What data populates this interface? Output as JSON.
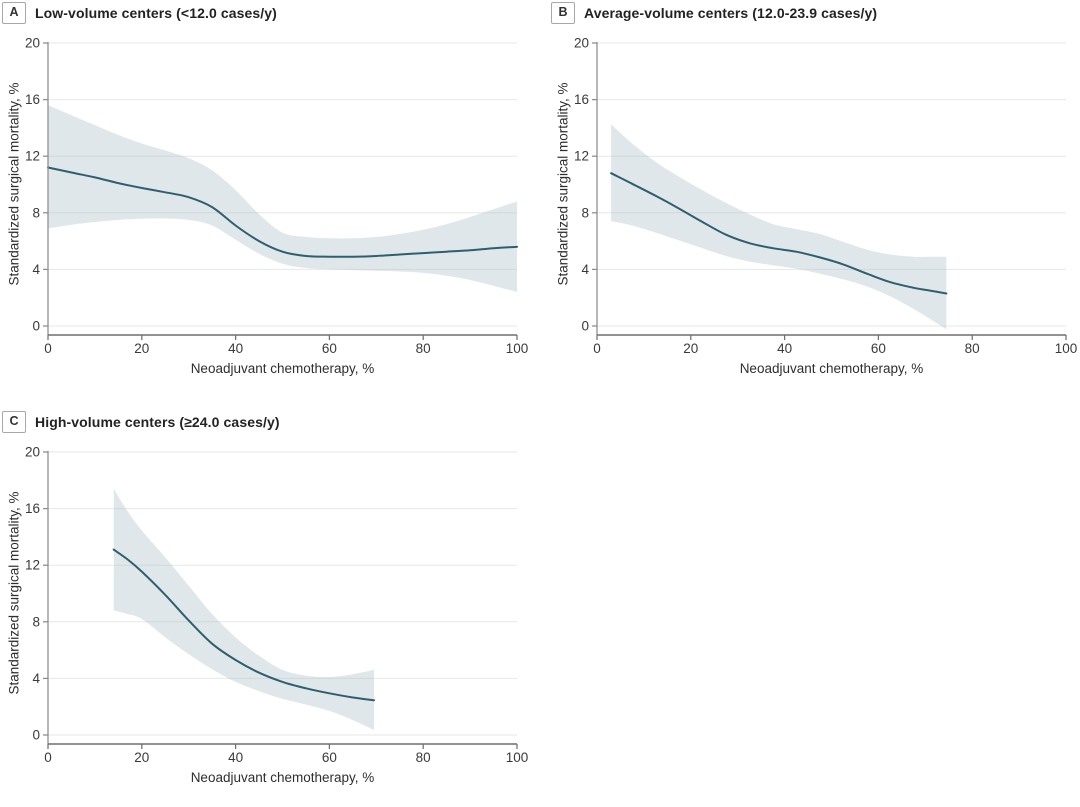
{
  "figure": {
    "background": "#ffffff",
    "colors": {
      "line": "#2E5F6F",
      "band": "rgba(174,192,199,0.38)",
      "grid": "#e7e7e7",
      "axis": "#6f6f6f",
      "axis_light": "#8c8c8c",
      "tick_text": "#3a3a3a"
    }
  },
  "chart_data": [
    {
      "type": "line",
      "panel": "A",
      "title": "Low-volume centers (<12.0 cases/y)",
      "xlabel": "Neoadjuvant chemotherapy, %",
      "ylabel": "Standardized surgical mortality, %",
      "xlim": [
        0,
        100
      ],
      "ylim": [
        0,
        20
      ],
      "xticks": [
        0,
        20,
        40,
        60,
        80,
        100
      ],
      "yticks": [
        0,
        4,
        8,
        12,
        16,
        20
      ],
      "grid": "horizontal",
      "legend": "none",
      "x": [
        0,
        5,
        10,
        15,
        20,
        25,
        30,
        35,
        40,
        45,
        50,
        55,
        60,
        65,
        70,
        75,
        80,
        85,
        90,
        95,
        100
      ],
      "series": [
        {
          "values": [
            11.2,
            10.85,
            10.5,
            10.1,
            9.75,
            9.45,
            9.1,
            8.4,
            7.1,
            6.0,
            5.25,
            4.95,
            4.9,
            4.9,
            4.95,
            5.05,
            5.15,
            5.25,
            5.35,
            5.5,
            5.6
          ]
        }
      ],
      "band": {
        "upper": [
          15.6,
          14.9,
          14.2,
          13.5,
          12.9,
          12.4,
          11.85,
          11.0,
          9.6,
          7.9,
          6.6,
          6.3,
          6.2,
          6.2,
          6.3,
          6.5,
          6.8,
          7.2,
          7.7,
          8.25,
          8.8
        ],
        "lower": [
          6.9,
          7.15,
          7.35,
          7.5,
          7.58,
          7.6,
          7.5,
          7.1,
          6.1,
          5.1,
          4.4,
          4.1,
          4.0,
          3.95,
          3.9,
          3.85,
          3.75,
          3.55,
          3.25,
          2.85,
          2.4
        ]
      }
    },
    {
      "type": "line",
      "panel": "B",
      "title": "Average-volume centers (12.0-23.9 cases/y)",
      "xlabel": "Neoadjuvant chemotherapy, %",
      "ylabel": "Standardized surgical mortality, %",
      "xlim": [
        0,
        100
      ],
      "ylim": [
        0,
        20
      ],
      "xticks": [
        0,
        20,
        40,
        60,
        80,
        100
      ],
      "yticks": [
        0,
        4,
        8,
        12,
        16,
        20
      ],
      "grid": "horizontal",
      "legend": "none",
      "x": [
        3,
        7.5,
        12.5,
        17.5,
        22.5,
        27.5,
        32.5,
        37.5,
        42.5,
        47.5,
        52.5,
        57.5,
        62.5,
        67.5,
        71,
        74.5
      ],
      "series": [
        {
          "values": [
            10.8,
            10.05,
            9.2,
            8.3,
            7.35,
            6.45,
            5.85,
            5.5,
            5.25,
            4.85,
            4.35,
            3.7,
            3.1,
            2.7,
            2.5,
            2.3
          ]
        }
      ],
      "band": {
        "upper": [
          14.25,
          12.9,
          11.6,
          10.55,
          9.6,
          8.7,
          7.9,
          7.2,
          6.85,
          6.5,
          5.95,
          5.4,
          5.05,
          4.9,
          4.9,
          4.9
        ],
        "lower": [
          7.4,
          7.1,
          6.6,
          6.05,
          5.5,
          4.95,
          4.55,
          4.3,
          4.05,
          3.7,
          3.3,
          2.8,
          2.1,
          1.2,
          0.5,
          -0.25
        ]
      }
    },
    {
      "type": "line",
      "panel": "C",
      "title": "High-volume centers (≥24.0 cases/y)",
      "xlabel": "Neoadjuvant chemotherapy, %",
      "ylabel": "Standardized surgical mortality, %",
      "xlim": [
        0,
        100
      ],
      "ylim": [
        0,
        20
      ],
      "xticks": [
        0,
        20,
        40,
        60,
        80,
        100
      ],
      "yticks": [
        0,
        4,
        8,
        12,
        16,
        20
      ],
      "grid": "horizontal",
      "legend": "none",
      "x": [
        14,
        17,
        20,
        25,
        30,
        35,
        40,
        45,
        50,
        55,
        60,
        65,
        69.5
      ],
      "series": [
        {
          "values": [
            13.1,
            12.4,
            11.55,
            9.9,
            8.1,
            6.45,
            5.3,
            4.4,
            3.75,
            3.3,
            2.95,
            2.65,
            2.45
          ]
        }
      ],
      "band": {
        "upper": [
          17.4,
          15.8,
          14.45,
          12.55,
          10.55,
          8.55,
          6.9,
          5.6,
          4.6,
          4.2,
          4.1,
          4.3,
          4.6
        ],
        "lower": [
          8.8,
          8.55,
          8.2,
          6.9,
          5.7,
          4.65,
          3.75,
          3.1,
          2.55,
          2.15,
          1.7,
          1.05,
          0.35
        ]
      }
    }
  ]
}
